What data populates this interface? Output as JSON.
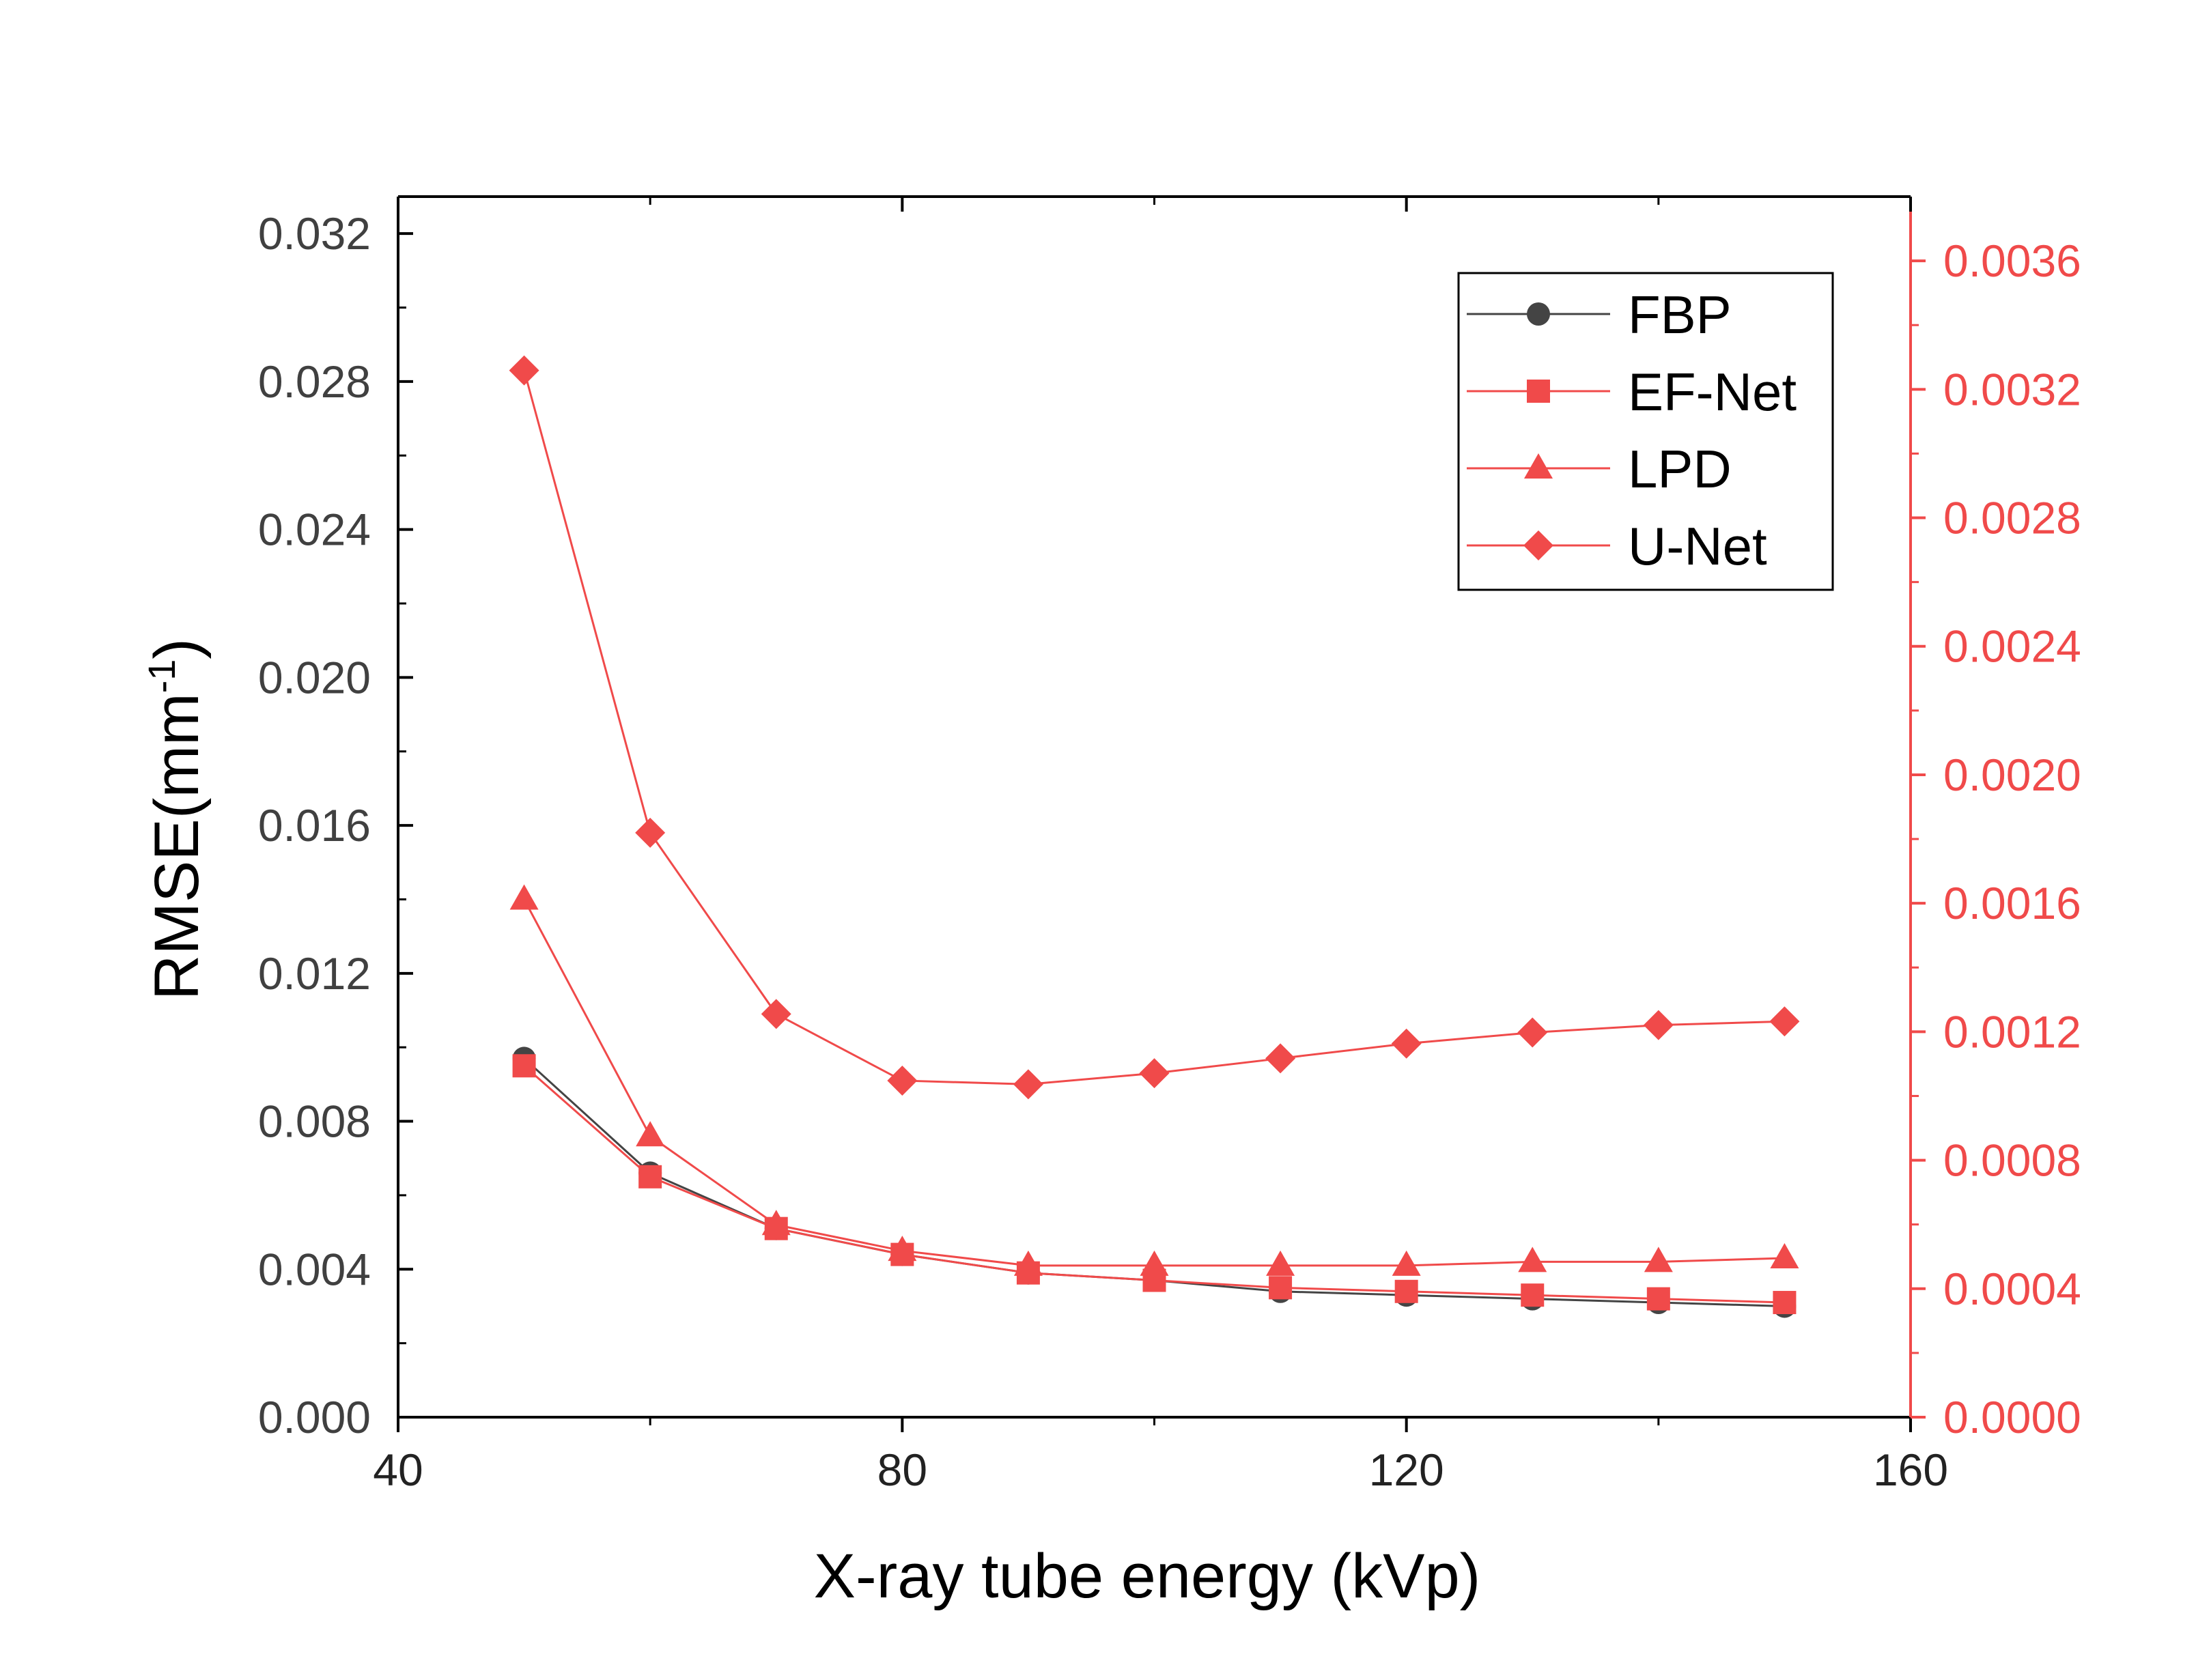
{
  "chart_data": {
    "type": "line",
    "title": "",
    "xlabel": "X-ray tube energy (kVp)",
    "ylabel_prefix": "RMSE(mm",
    "ylabel_sup": "-1",
    "ylabel_suffix": ")",
    "xlim": [
      40,
      160
    ],
    "ylim_left": [
      0,
      0.033
    ],
    "ylim_right": [
      0,
      0.0038
    ],
    "x_ticks": [
      "40",
      "80",
      "120",
      "160"
    ],
    "y_ticks_left": [
      "0.000",
      "0.004",
      "0.008",
      "0.012",
      "0.016",
      "0.020",
      "0.024",
      "0.028",
      "0.032"
    ],
    "y_ticks_right": [
      "0.0000",
      "0.0004",
      "0.0008",
      "0.0012",
      "0.0016",
      "0.0020",
      "0.0024",
      "0.0028",
      "0.0032",
      "0.0036"
    ],
    "x": [
      50,
      60,
      70,
      80,
      90,
      100,
      110,
      120,
      130,
      140,
      150
    ],
    "series": [
      {
        "name": "FBP",
        "axis": "left",
        "marker": "circle",
        "color": "#444444",
        "values": [
          0.0097,
          0.0066,
          0.0051,
          0.0044,
          0.0039,
          0.0037,
          0.0034,
          0.0033,
          0.0032,
          0.0031,
          0.003
        ]
      },
      {
        "name": "EF-Net",
        "axis": "left",
        "marker": "square",
        "color": "#f04a4a",
        "values": [
          0.0095,
          0.0065,
          0.0051,
          0.0044,
          0.0039,
          0.0037,
          0.0035,
          0.0034,
          0.0033,
          0.0032,
          0.0031
        ]
      },
      {
        "name": "LPD",
        "axis": "left",
        "marker": "triangle",
        "color": "#f04a4a",
        "values": [
          0.014,
          0.0076,
          0.0052,
          0.0045,
          0.0041,
          0.0041,
          0.0041,
          0.0041,
          0.0042,
          0.0042,
          0.0043
        ]
      },
      {
        "name": "U-Net",
        "axis": "left",
        "marker": "diamond",
        "color": "#f04a4a",
        "values": [
          0.0283,
          0.0158,
          0.0109,
          0.0091,
          0.009,
          0.0093,
          0.0097,
          0.0101,
          0.0104,
          0.0106,
          0.0107
        ]
      }
    ],
    "legend_position": "top-right",
    "colors": {
      "left_axis": "#404040",
      "right_axis": "#f04a4a",
      "frame": "#000000"
    }
  }
}
